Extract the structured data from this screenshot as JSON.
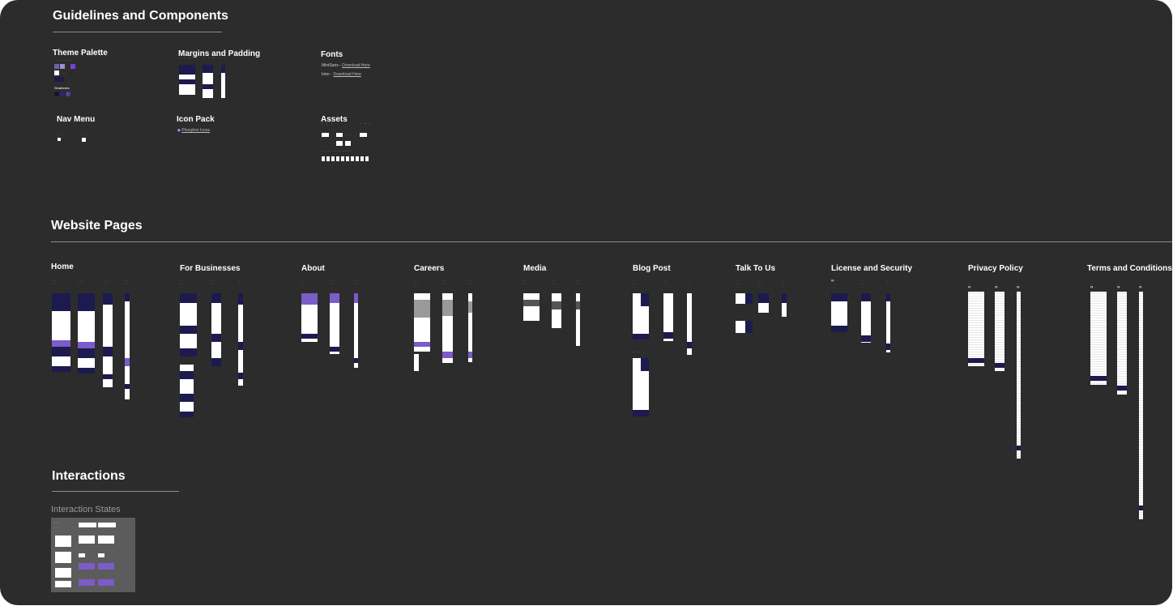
{
  "sections": {
    "guidelines": "Guidelines and Components",
    "website": "Website Pages",
    "interactions": "Interactions"
  },
  "guidelines": {
    "theme_palette": "Theme Palette",
    "gradients": "Gradients",
    "margins": "Margins and Padding",
    "fonts": "Fonts",
    "font1_name": "MintSans -",
    "font1_link": "Download Here",
    "font2_name": "Inter -",
    "font2_link": "Download Here",
    "nav_menu": "Nav Menu",
    "icon_pack": "Icon Pack",
    "icon_link": "Phosphor Icons",
    "assets": "Assets"
  },
  "pages": [
    {
      "label": "Home"
    },
    {
      "label": "For Businesses"
    },
    {
      "label": "About"
    },
    {
      "label": "Careers"
    },
    {
      "label": "Media"
    },
    {
      "label": "Blog Post"
    },
    {
      "label": "Talk To Us"
    },
    {
      "label": "License and Security"
    },
    {
      "label": "Privacy Policy"
    },
    {
      "label": "Terms and Conditions"
    }
  ],
  "interactions": {
    "states_label": "Interaction States"
  },
  "colors": {
    "canvas": "#2c2c2c",
    "navy": "#1c1a4e",
    "purple": "#7b5cc9",
    "white": "#ffffff"
  }
}
